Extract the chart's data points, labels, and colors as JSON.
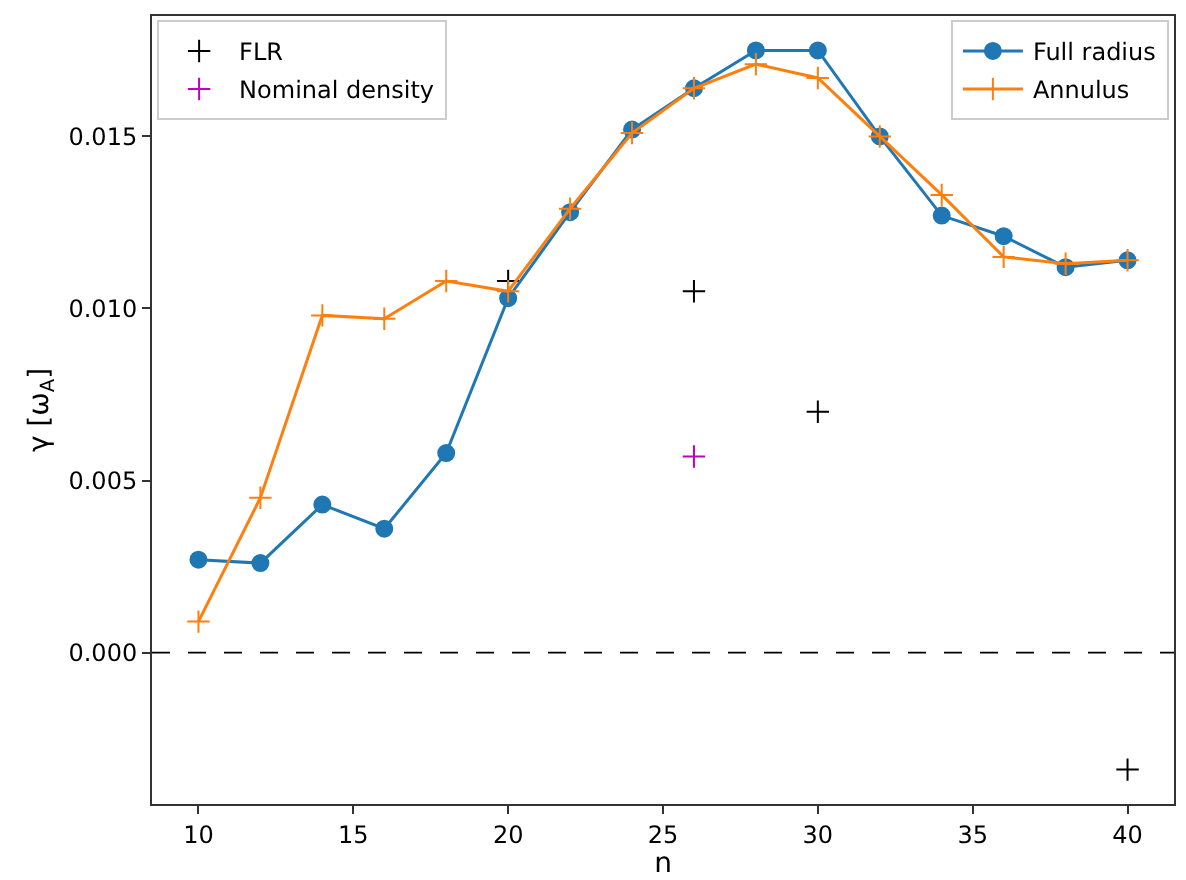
{
  "chart_data": {
    "type": "line",
    "xlabel": "n",
    "ylabel": "γ [ω$_{A}$]",
    "x": [
      10,
      12,
      14,
      16,
      18,
      20,
      22,
      24,
      26,
      28,
      30,
      32,
      34,
      36,
      38,
      40
    ],
    "xlim": [
      8.5,
      41.5
    ],
    "xticks": [
      10,
      15,
      20,
      25,
      30,
      35,
      40
    ],
    "ylim": [
      -0.0044,
      0.0185
    ],
    "yticks": [
      {
        "value": 0,
        "label": "0.000"
      },
      {
        "value": 0.005,
        "label": "0.005"
      },
      {
        "value": 0.01,
        "label": "0.010"
      },
      {
        "value": 0.015,
        "label": "0.015"
      }
    ],
    "grid": false,
    "legend": "top right",
    "ref_lines": [
      {
        "axis": "y",
        "value": 0,
        "color": "#000000",
        "line_style": "dashed"
      }
    ],
    "series": [
      {
        "name": "FLR",
        "type": "scatter",
        "marker": "cross",
        "color": "#000000",
        "x": [
          20,
          26,
          30,
          40
        ],
        "values": [
          0.0108,
          0.0105,
          0.007,
          -0.0034
        ]
      },
      {
        "name": "Nominal density",
        "type": "scatter",
        "marker": "cross",
        "color": "#bf00bf",
        "x": [
          26
        ],
        "values": [
          0.0057
        ]
      },
      {
        "name": "Full radius",
        "marker": "circle",
        "color": "#1f77b4",
        "values": [
          0.0027,
          0.0026,
          0.0043,
          0.0036,
          0.0058,
          0.0103,
          0.0128,
          0.0152,
          0.0164,
          0.0175,
          0.0175,
          0.015,
          0.0127,
          0.0121,
          0.0112,
          0.0114
        ]
      },
      {
        "name": "Annulus",
        "marker": "cross",
        "color": "#ff7f0e",
        "values": [
          0.0009,
          0.0045,
          0.0098,
          0.0097,
          0.0108,
          0.0105,
          0.0129,
          0.0151,
          0.0164,
          0.0171,
          0.0167,
          0.015,
          0.0133,
          0.0115,
          0.0113,
          0.0114
        ]
      }
    ]
  }
}
